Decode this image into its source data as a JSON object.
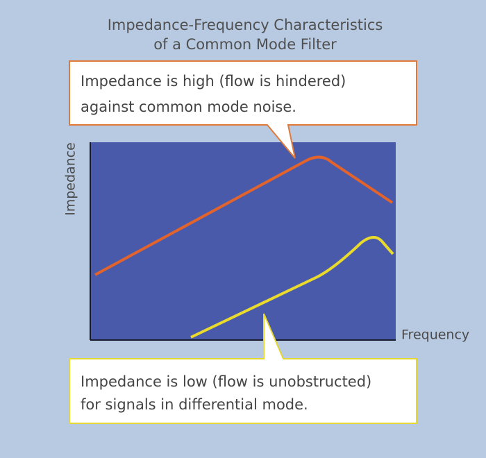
{
  "title": {
    "lines": [
      "Impedance-Frequency Characteristics",
      "of a Common Mode Filter"
    ]
  },
  "axes": {
    "y_label": "Impedance",
    "x_label": "Frequency"
  },
  "callouts": [
    {
      "lines": [
        "Impedance is high (flow is hindered)",
        "against common mode noise."
      ]
    },
    {
      "lines": [
        "Impedance is low (flow is unobstructed)",
        "for signals in differential mode."
      ]
    }
  ]
}
